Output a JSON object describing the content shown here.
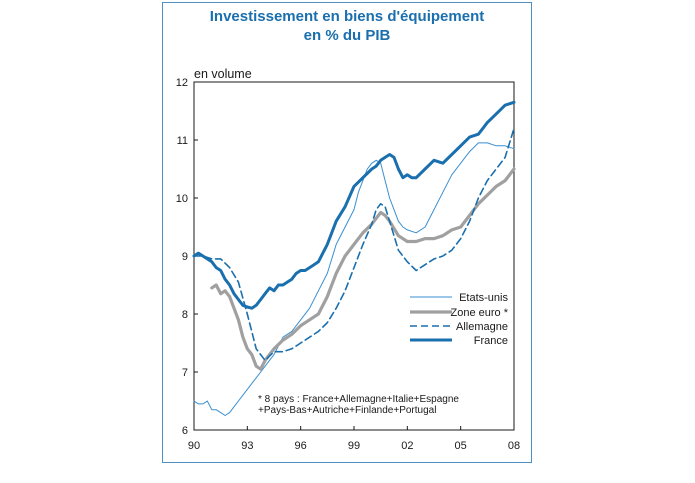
{
  "title_lines": [
    "Investissement en biens d'équipement",
    "en % du PIB"
  ],
  "chart_data": {
    "type": "line",
    "title": "Investissement en biens d'équipement en % du PIB",
    "ylabel": "en volume",
    "xlabel": "",
    "ylim": [
      6,
      12
    ],
    "xlim": [
      1990,
      2008
    ],
    "yticks": [
      6,
      7,
      8,
      9,
      10,
      11,
      12
    ],
    "xticks": [
      {
        "value": 1990,
        "label": "90"
      },
      {
        "value": 1993,
        "label": "93"
      },
      {
        "value": 1996,
        "label": "96"
      },
      {
        "value": 1999,
        "label": "99"
      },
      {
        "value": 2002,
        "label": "02"
      },
      {
        "value": 2005,
        "label": "05"
      },
      {
        "value": 2008,
        "label": "08"
      }
    ],
    "grid": false,
    "legend_position": "right-middle",
    "note_lines": [
      "* 8 pays : France+Allemagne+Italie+Espagne",
      "+Pays-Bas+Autriche+Finlande+Portugal"
    ],
    "series": [
      {
        "name": "Etats-unis",
        "color": "#3a8fd0",
        "style": "thin",
        "x": [
          1990,
          1990.25,
          1990.5,
          1990.75,
          1991,
          1991.25,
          1991.5,
          1991.75,
          1992,
          1992.25,
          1992.5,
          1992.75,
          1993,
          1993.25,
          1993.5,
          1993.75,
          1994,
          1994.5,
          1995,
          1995.5,
          1996,
          1996.5,
          1997,
          1997.5,
          1998,
          1998.5,
          1999,
          1999.25,
          1999.5,
          1999.75,
          2000,
          2000.25,
          2000.5,
          2000.75,
          2001,
          2001.25,
          2001.5,
          2001.75,
          2002,
          2002.5,
          2003,
          2003.5,
          2004,
          2004.5,
          2005,
          2005.5,
          2006,
          2006.5,
          2007,
          2007.5,
          2008
        ],
        "y": [
          6.5,
          6.45,
          6.45,
          6.5,
          6.35,
          6.35,
          6.3,
          6.25,
          6.3,
          6.4,
          6.5,
          6.6,
          6.7,
          6.8,
          6.9,
          7.0,
          7.1,
          7.3,
          7.6,
          7.7,
          7.9,
          8.1,
          8.4,
          8.7,
          9.2,
          9.5,
          9.8,
          10.1,
          10.3,
          10.5,
          10.6,
          10.65,
          10.6,
          10.3,
          10.0,
          9.8,
          9.6,
          9.5,
          9.45,
          9.4,
          9.5,
          9.8,
          10.1,
          10.4,
          10.6,
          10.8,
          10.95,
          10.95,
          10.9,
          10.9,
          10.85
        ]
      },
      {
        "name": "Zone euro *",
        "color": "#a0a0a0",
        "style": "thick",
        "x": [
          1991,
          1991.25,
          1991.5,
          1991.75,
          1992,
          1992.25,
          1992.5,
          1992.75,
          1993,
          1993.25,
          1993.5,
          1993.75,
          1994,
          1994.5,
          1995,
          1995.5,
          1996,
          1996.5,
          1997,
          1997.5,
          1998,
          1998.5,
          1999,
          1999.5,
          2000,
          2000.25,
          2000.5,
          2000.75,
          2001,
          2001.5,
          2002,
          2002.5,
          2003,
          2003.5,
          2004,
          2004.5,
          2005,
          2005.5,
          2006,
          2006.5,
          2007,
          2007.5,
          2008
        ],
        "y": [
          8.45,
          8.5,
          8.35,
          8.4,
          8.3,
          8.1,
          7.9,
          7.6,
          7.4,
          7.3,
          7.1,
          7.05,
          7.2,
          7.4,
          7.55,
          7.65,
          7.8,
          7.9,
          8.0,
          8.3,
          8.7,
          9.0,
          9.2,
          9.4,
          9.55,
          9.65,
          9.75,
          9.7,
          9.6,
          9.35,
          9.25,
          9.25,
          9.3,
          9.3,
          9.35,
          9.45,
          9.5,
          9.7,
          9.9,
          10.05,
          10.2,
          10.3,
          10.5
        ]
      },
      {
        "name": "Allemagne",
        "color": "#1a6fae",
        "style": "dashed",
        "x": [
          1990,
          1990.5,
          1991,
          1991.5,
          1992,
          1992.5,
          1993,
          1993.5,
          1994,
          1994.5,
          1995,
          1995.5,
          1996,
          1996.5,
          1997,
          1997.5,
          1998,
          1998.5,
          1999,
          1999.5,
          2000,
          2000.25,
          2000.5,
          2000.75,
          2001,
          2001.5,
          2002,
          2002.5,
          2003,
          2003.5,
          2004,
          2004.5,
          2005,
          2005.5,
          2006,
          2006.5,
          2007,
          2007.5,
          2008
        ],
        "y": [
          9.0,
          9.0,
          8.95,
          8.95,
          8.8,
          8.55,
          8.0,
          7.4,
          7.2,
          7.35,
          7.35,
          7.4,
          7.5,
          7.6,
          7.7,
          7.85,
          8.1,
          8.4,
          8.8,
          9.2,
          9.55,
          9.8,
          9.9,
          9.85,
          9.6,
          9.1,
          8.9,
          8.75,
          8.85,
          8.95,
          9.0,
          9.1,
          9.3,
          9.6,
          10.0,
          10.3,
          10.5,
          10.7,
          11.2
        ]
      },
      {
        "name": "France",
        "color": "#1a6fae",
        "style": "thickblue",
        "x": [
          1990,
          1990.25,
          1990.5,
          1990.75,
          1991,
          1991.25,
          1991.5,
          1991.75,
          1992,
          1992.25,
          1992.5,
          1992.75,
          1993,
          1993.25,
          1993.5,
          1993.75,
          1994,
          1994.25,
          1994.5,
          1994.75,
          1995,
          1995.25,
          1995.5,
          1995.75,
          1996,
          1996.25,
          1996.5,
          1996.75,
          1997,
          1997.5,
          1998,
          1998.5,
          1999,
          1999.5,
          2000,
          2000.25,
          2000.5,
          2000.75,
          2001,
          2001.25,
          2001.5,
          2001.75,
          2002,
          2002.25,
          2002.5,
          2003,
          2003.5,
          2004,
          2004.5,
          2005,
          2005.5,
          2006,
          2006.5,
          2007,
          2007.5,
          2008
        ],
        "y": [
          9.0,
          9.05,
          9.0,
          8.95,
          8.9,
          8.8,
          8.75,
          8.6,
          8.5,
          8.35,
          8.25,
          8.15,
          8.12,
          8.1,
          8.15,
          8.25,
          8.35,
          8.45,
          8.4,
          8.5,
          8.5,
          8.55,
          8.6,
          8.7,
          8.75,
          8.75,
          8.8,
          8.85,
          8.9,
          9.2,
          9.6,
          9.85,
          10.2,
          10.35,
          10.5,
          10.55,
          10.65,
          10.7,
          10.75,
          10.7,
          10.5,
          10.35,
          10.4,
          10.35,
          10.35,
          10.5,
          10.65,
          10.6,
          10.75,
          10.9,
          11.05,
          11.1,
          11.3,
          11.45,
          11.6,
          11.65
        ]
      }
    ]
  }
}
